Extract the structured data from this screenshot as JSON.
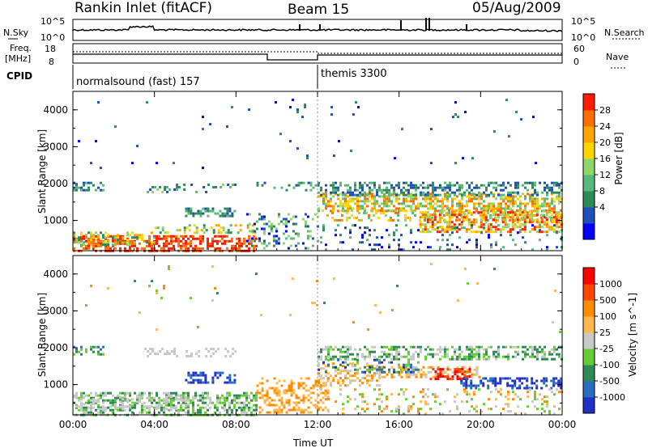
{
  "header": {
    "station": "Rankin Inlet (fitACF)",
    "beam": "Beam 15",
    "date": "05/Aug/2009"
  },
  "noise_panel": {
    "left_label": "N.Sky",
    "left_ticks": [
      "10^5",
      "10^0"
    ],
    "right_label": "N.Search",
    "right_ticks": [
      "10^5",
      "10^0"
    ]
  },
  "freq_panel": {
    "label_1": "Freq.",
    "label_2": "[MHz]",
    "left_ticks": [
      "18",
      "8"
    ],
    "right_label": "Nave",
    "right_ticks": [
      "60",
      "0"
    ]
  },
  "cpid": {
    "label": "CPID",
    "modes": [
      {
        "name": "normalsound (fast) 157"
      },
      {
        "name": "themis 3300"
      }
    ]
  },
  "chart_data": [
    {
      "type": "heatmap",
      "quantity": "Power",
      "colorbar_label": "Power [dB]",
      "colorbar_ticks": [
        "28",
        "24",
        "20",
        "16",
        "12",
        "8",
        "4"
      ],
      "colors": [
        "#0000ff",
        "#1f4fb8",
        "#2e8b57",
        "#59b87a",
        "#8fd66a",
        "#ffd400",
        "#ffa500",
        "#ff6f00",
        "#ff1a00"
      ],
      "xlabel": "",
      "ylabel": "Slant Range [km]",
      "x_ticks": [
        "",
        "",
        "",
        "",
        "",
        "",
        ""
      ],
      "y_ticks": [
        "4000",
        "3000",
        "2000",
        "1000"
      ],
      "x_range_hours": [
        0,
        24
      ],
      "y_range_km": [
        180,
        4500
      ]
    },
    {
      "type": "heatmap",
      "quantity": "Velocity",
      "colorbar_label": "Velocity [m s^-1]",
      "colorbar_ticks": [
        "1000",
        "500",
        "100",
        "25",
        "-25",
        "-100",
        "-500",
        "-1000"
      ],
      "colors": [
        "#2030c8",
        "#2a6cc0",
        "#2e8b57",
        "#66cc33",
        "#c8c8c8",
        "#ffb84d",
        "#ff8c00",
        "#ff4500",
        "#ff0000"
      ],
      "xlabel": "Time UT",
      "ylabel": "Slant Range [km]",
      "x_ticks": [
        "00:00",
        "04:00",
        "08:00",
        "12:00",
        "16:00",
        "20:00",
        "00:00"
      ],
      "y_ticks": [
        "4000",
        "3000",
        "2000",
        "1000"
      ],
      "x_range_hours": [
        0,
        24
      ],
      "y_range_km": [
        180,
        4500
      ]
    }
  ]
}
